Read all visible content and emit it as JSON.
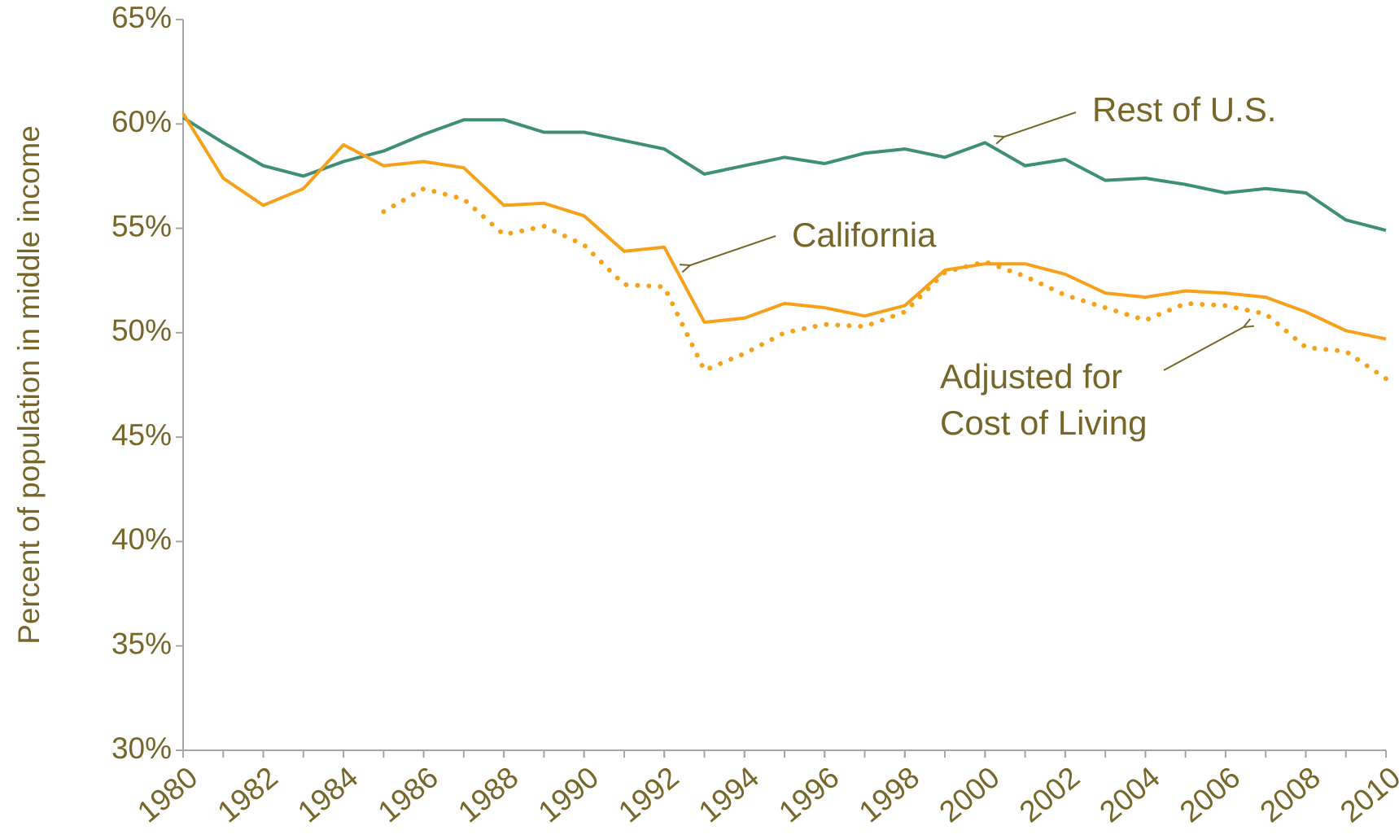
{
  "chart_data": {
    "type": "line",
    "y_label": "Percent of population in middle income",
    "x": [
      1980,
      1981,
      1982,
      1983,
      1984,
      1985,
      1986,
      1987,
      1988,
      1989,
      1990,
      1991,
      1992,
      1993,
      1994,
      1995,
      1996,
      1997,
      1998,
      1999,
      2000,
      2001,
      2002,
      2003,
      2004,
      2005,
      2006,
      2007,
      2008,
      2009,
      2010
    ],
    "series": [
      {
        "name": "Rest of U.S.",
        "color": "#3f8f78",
        "dash": "solid",
        "values": [
          60.3,
          59.1,
          58.0,
          57.5,
          58.2,
          58.7,
          59.5,
          60.2,
          60.2,
          59.6,
          59.6,
          59.2,
          58.8,
          57.6,
          58.0,
          58.4,
          58.1,
          58.6,
          58.8,
          58.4,
          59.1,
          58.0,
          58.3,
          57.3,
          57.4,
          57.1,
          56.7,
          56.9,
          56.7,
          55.4,
          54.9
        ]
      },
      {
        "name": "California",
        "color": "#f7a11a",
        "dash": "solid",
        "values": [
          60.5,
          57.4,
          56.1,
          56.9,
          59.0,
          58.0,
          58.2,
          57.9,
          56.1,
          56.2,
          55.6,
          53.9,
          54.1,
          50.5,
          50.7,
          51.4,
          51.2,
          50.8,
          51.3,
          53.0,
          53.3,
          53.3,
          52.8,
          51.9,
          51.7,
          52.0,
          51.9,
          51.7,
          51.0,
          50.1,
          49.7
        ]
      },
      {
        "name": [
          "Adjusted for",
          "Cost of Living"
        ],
        "color": "#f7a11a",
        "dash": "dotted",
        "values": [
          null,
          null,
          null,
          null,
          null,
          55.8,
          56.9,
          56.4,
          54.7,
          55.1,
          54.2,
          52.3,
          52.2,
          48.2,
          49.0,
          50.0,
          50.4,
          50.3,
          51.0,
          52.9,
          53.4,
          52.7,
          51.8,
          51.2,
          50.6,
          51.4,
          51.3,
          50.9,
          49.3,
          49.1,
          47.8
        ]
      }
    ],
    "xlim": [
      1980,
      2010
    ],
    "xticks": [
      1980,
      1982,
      1984,
      1986,
      1988,
      1990,
      1992,
      1994,
      1996,
      1998,
      2000,
      2002,
      2004,
      2006,
      2008,
      2010
    ],
    "ylim": [
      30,
      65
    ],
    "yticks": [
      {
        "value": 30,
        "label": "30%"
      },
      {
        "value": 35,
        "label": "35%"
      },
      {
        "value": 40,
        "label": "40%"
      },
      {
        "value": 45,
        "label": "45%"
      },
      {
        "value": 50,
        "label": "50%"
      },
      {
        "value": 55,
        "label": "55%"
      },
      {
        "value": 60,
        "label": "60%"
      },
      {
        "value": 65,
        "label": "65%"
      }
    ],
    "grid": false
  }
}
